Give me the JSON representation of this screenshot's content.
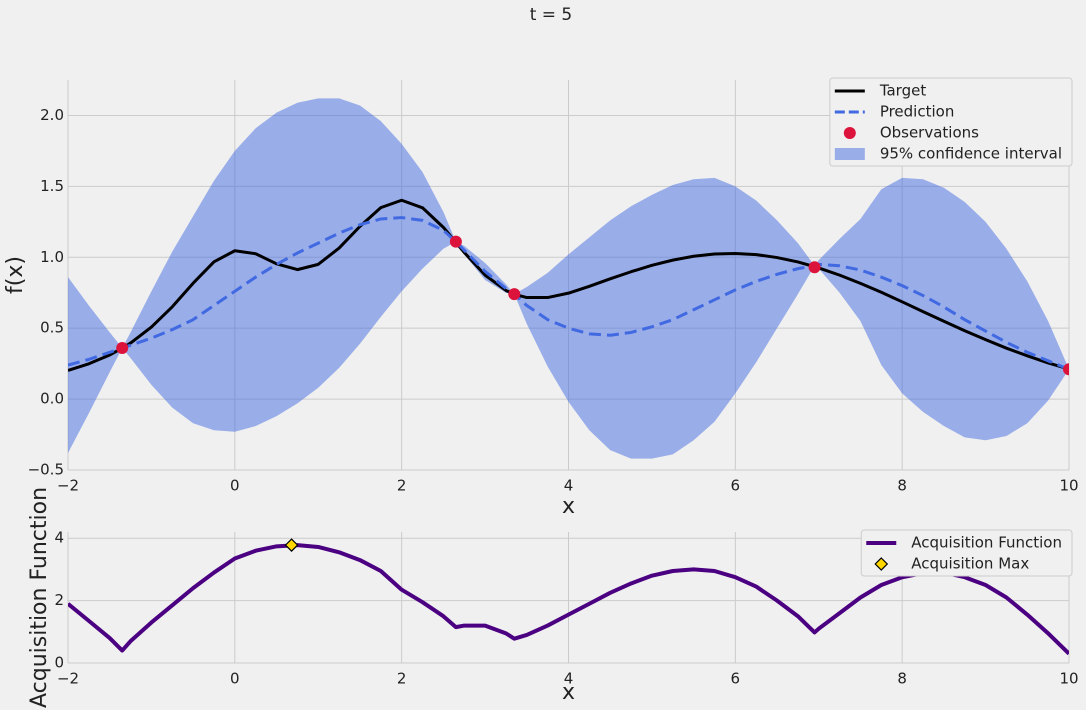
{
  "suptitle": "t = 5",
  "chart_data": [
    {
      "type": "line",
      "xlabel": "x",
      "ylabel": "f(x)",
      "legend": "upper right",
      "grid": true,
      "xlim": [
        -2,
        10
      ],
      "xticks": [
        {
          "value": -2,
          "label": "−2"
        },
        0,
        2,
        4,
        6,
        8,
        10
      ],
      "ylim": [
        -0.5,
        2.25
      ],
      "yticks": [
        {
          "value": -0.5,
          "label": "−0.5"
        },
        {
          "value": 0,
          "label": "0.0"
        },
        0.5,
        {
          "value": 1,
          "label": "1.0"
        },
        1.5,
        {
          "value": 2,
          "label": "2.0"
        }
      ],
      "x": [
        -2,
        -1.75,
        -1.5,
        -1.35,
        -1.25,
        -1,
        -0.75,
        -0.5,
        -0.25,
        0,
        0.25,
        0.5,
        0.75,
        1,
        1.25,
        1.5,
        1.75,
        2,
        2.25,
        2.5,
        2.65,
        2.75,
        3,
        3.25,
        3.35,
        3.5,
        3.75,
        4,
        4.25,
        4.5,
        4.75,
        5,
        5.25,
        5.5,
        5.75,
        6,
        6.25,
        6.5,
        6.75,
        6.95,
        7,
        7.25,
        7.5,
        7.75,
        8,
        8.25,
        8.5,
        8.75,
        9,
        9.25,
        9.5,
        9.75,
        10
      ],
      "series": [
        {
          "name": "Target",
          "kind": "line",
          "style": "solid",
          "color": "#000000",
          "values": [
            0.202,
            0.249,
            0.311,
            0.359,
            0.395,
            0.508,
            0.651,
            0.817,
            0.968,
            1.046,
            1.025,
            0.954,
            0.913,
            0.95,
            1.065,
            1.218,
            1.35,
            1.402,
            1.349,
            1.211,
            1.105,
            1.034,
            0.874,
            0.766,
            0.739,
            0.716,
            0.716,
            0.747,
            0.795,
            0.848,
            0.898,
            0.943,
            0.98,
            1.007,
            1.023,
            1.027,
            1.019,
            0.998,
            0.967,
            0.934,
            0.925,
            0.874,
            0.816,
            0.753,
            0.686,
            0.617,
            0.549,
            0.482,
            0.419,
            0.359,
            0.305,
            0.255,
            0.212
          ]
        },
        {
          "name": "Prediction",
          "kind": "line",
          "style": "dashed",
          "color": "#4169e1",
          "values": [
            0.24,
            0.28,
            0.33,
            0.36,
            0.38,
            0.43,
            0.49,
            0.56,
            0.66,
            0.76,
            0.86,
            0.95,
            1.03,
            1.1,
            1.17,
            1.23,
            1.27,
            1.28,
            1.26,
            1.19,
            1.11,
            1.05,
            0.9,
            0.78,
            0.74,
            0.66,
            0.56,
            0.5,
            0.46,
            0.45,
            0.47,
            0.51,
            0.56,
            0.63,
            0.7,
            0.77,
            0.83,
            0.88,
            0.92,
            0.94,
            0.95,
            0.94,
            0.91,
            0.86,
            0.8,
            0.73,
            0.65,
            0.56,
            0.48,
            0.4,
            0.33,
            0.27,
            0.21
          ]
        },
        {
          "name": "Observations",
          "kind": "scatter",
          "marker": "circle",
          "color": "#dc143c",
          "x": [
            -1.35,
            2.65,
            3.35,
            6.95,
            10
          ],
          "values": [
            0.36,
            1.11,
            0.74,
            0.93,
            0.21
          ]
        },
        {
          "name": "95% confidence interval",
          "kind": "band",
          "color": "#4169e1",
          "lower": [
            -0.38,
            -0.1,
            0.19,
            0.36,
            0.29,
            0.1,
            -0.06,
            -0.17,
            -0.22,
            -0.23,
            -0.19,
            -0.12,
            -0.03,
            0.08,
            0.22,
            0.39,
            0.58,
            0.76,
            0.92,
            1.06,
            1.11,
            1.02,
            0.84,
            0.75,
            0.74,
            0.53,
            0.23,
            -0.02,
            -0.22,
            -0.36,
            -0.42,
            -0.42,
            -0.39,
            -0.29,
            -0.16,
            0.04,
            0.26,
            0.5,
            0.74,
            0.94,
            0.92,
            0.75,
            0.55,
            0.24,
            0.04,
            -0.09,
            -0.19,
            -0.27,
            -0.29,
            -0.26,
            -0.17,
            -0.01,
            0.21
          ],
          "upper": [
            0.86,
            0.66,
            0.47,
            0.36,
            0.47,
            0.76,
            1.04,
            1.29,
            1.54,
            1.75,
            1.91,
            2.02,
            2.09,
            2.12,
            2.12,
            2.07,
            1.96,
            1.8,
            1.6,
            1.32,
            1.11,
            1.08,
            0.96,
            0.81,
            0.74,
            0.79,
            0.89,
            1.02,
            1.14,
            1.26,
            1.36,
            1.44,
            1.51,
            1.55,
            1.56,
            1.5,
            1.4,
            1.26,
            1.1,
            0.94,
            0.98,
            1.13,
            1.27,
            1.48,
            1.56,
            1.55,
            1.49,
            1.39,
            1.25,
            1.06,
            0.83,
            0.55,
            0.21
          ]
        }
      ]
    },
    {
      "type": "line",
      "xlabel": "x",
      "ylabel": "Acquisition Function",
      "legend": "upper right",
      "grid": true,
      "xlim": [
        -2,
        10
      ],
      "xticks": [
        {
          "value": -2,
          "label": "−2"
        },
        0,
        2,
        4,
        6,
        8,
        10
      ],
      "ylim": [
        0,
        4.2
      ],
      "yticks": [
        0,
        2,
        4
      ],
      "x": [
        -2,
        -1.75,
        -1.5,
        -1.35,
        -1.25,
        -1,
        -0.75,
        -0.5,
        -0.25,
        0,
        0.25,
        0.5,
        0.75,
        1,
        1.25,
        1.5,
        1.75,
        2,
        2.25,
        2.5,
        2.65,
        2.75,
        3,
        3.25,
        3.35,
        3.5,
        3.75,
        4,
        4.25,
        4.5,
        4.75,
        5,
        5.25,
        5.5,
        5.75,
        6,
        6.25,
        6.5,
        6.75,
        6.95,
        7,
        7.25,
        7.5,
        7.75,
        8,
        8.25,
        8.5,
        8.75,
        9,
        9.25,
        9.5,
        9.75,
        10
      ],
      "series": [
        {
          "name": "Acquisition Function",
          "kind": "line",
          "style": "solid",
          "color": "#4b0082",
          "values": [
            1.9,
            1.35,
            0.8,
            0.4,
            0.7,
            1.3,
            1.85,
            2.4,
            2.9,
            3.35,
            3.6,
            3.74,
            3.78,
            3.72,
            3.55,
            3.3,
            2.95,
            2.35,
            1.95,
            1.5,
            1.15,
            1.2,
            1.2,
            0.95,
            0.78,
            0.9,
            1.2,
            1.55,
            1.9,
            2.25,
            2.55,
            2.8,
            2.95,
            3.0,
            2.95,
            2.75,
            2.45,
            2.0,
            1.5,
            0.98,
            1.1,
            1.6,
            2.1,
            2.5,
            2.75,
            2.88,
            2.9,
            2.75,
            2.5,
            2.1,
            1.55,
            0.95,
            0.3
          ]
        },
        {
          "name": "Acquisition Max",
          "kind": "scatter",
          "marker": "diamond",
          "color": "#ffd700",
          "x": [
            0.68
          ],
          "values": [
            3.78
          ]
        }
      ]
    }
  ]
}
